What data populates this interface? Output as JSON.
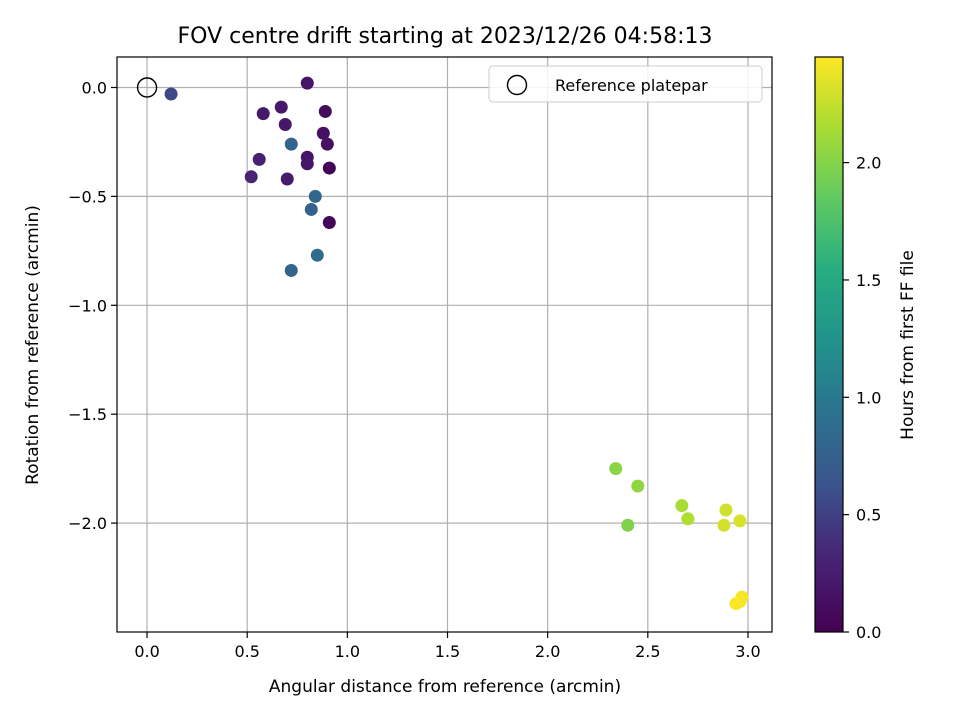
{
  "chart_data": {
    "type": "scatter",
    "title": "FOV centre drift starting at 2023/12/26 04:58:13",
    "xlabel": "Angular distance from reference (arcmin)",
    "ylabel": "Rotation from reference (arcmin)",
    "xlim": [
      -0.15,
      3.12
    ],
    "ylim": [
      -2.5,
      0.14
    ],
    "xticks": [
      0.0,
      0.5,
      1.0,
      1.5,
      2.0,
      2.5,
      3.0
    ],
    "xtick_labels": [
      "0.0",
      "0.5",
      "1.0",
      "1.5",
      "2.0",
      "2.5",
      "3.0"
    ],
    "yticks": [
      0.0,
      -0.5,
      -1.0,
      -1.5,
      -2.0
    ],
    "ytick_labels": [
      "0.0",
      "−0.5",
      "−1.0",
      "−1.5",
      "−2.0"
    ],
    "grid": true,
    "legend": {
      "position": "top-right",
      "entries": [
        {
          "label": "Reference platepar",
          "marker": "open-circle",
          "color": "#000000"
        }
      ]
    },
    "reference_point": {
      "x": 0.0,
      "y": 0.0
    },
    "colorbar": {
      "label": "Hours from first FF file",
      "colormap": "viridis",
      "range": [
        0.0,
        2.45
      ],
      "ticks": [
        0.0,
        0.5,
        1.0,
        1.5,
        2.0
      ],
      "tick_labels": [
        "0.0",
        "0.5",
        "1.0",
        "1.5",
        "2.0"
      ]
    },
    "points": [
      {
        "x": 0.8,
        "y": 0.02,
        "h": 0.18
      },
      {
        "x": 0.12,
        "y": -0.03,
        "h": 0.55
      },
      {
        "x": 0.58,
        "y": -0.12,
        "h": 0.22
      },
      {
        "x": 0.67,
        "y": -0.09,
        "h": 0.2
      },
      {
        "x": 0.69,
        "y": -0.17,
        "h": 0.21
      },
      {
        "x": 0.89,
        "y": -0.11,
        "h": 0.1
      },
      {
        "x": 0.88,
        "y": -0.21,
        "h": 0.15
      },
      {
        "x": 0.9,
        "y": -0.26,
        "h": 0.14
      },
      {
        "x": 0.72,
        "y": -0.26,
        "h": 0.8
      },
      {
        "x": 0.56,
        "y": -0.33,
        "h": 0.28
      },
      {
        "x": 0.8,
        "y": -0.32,
        "h": 0.18
      },
      {
        "x": 0.8,
        "y": -0.35,
        "h": 0.19
      },
      {
        "x": 0.91,
        "y": -0.37,
        "h": 0.02
      },
      {
        "x": 0.52,
        "y": -0.41,
        "h": 0.32
      },
      {
        "x": 0.7,
        "y": -0.42,
        "h": 0.23
      },
      {
        "x": 0.84,
        "y": -0.5,
        "h": 0.82
      },
      {
        "x": 0.82,
        "y": -0.56,
        "h": 0.78
      },
      {
        "x": 0.91,
        "y": -0.62,
        "h": 0.05
      },
      {
        "x": 0.85,
        "y": -0.77,
        "h": 0.85
      },
      {
        "x": 0.72,
        "y": -0.84,
        "h": 0.8
      },
      {
        "x": 2.34,
        "y": -1.75,
        "h": 2.02
      },
      {
        "x": 2.45,
        "y": -1.83,
        "h": 2.05
      },
      {
        "x": 2.4,
        "y": -2.01,
        "h": 1.98
      },
      {
        "x": 2.67,
        "y": -1.92,
        "h": 2.15
      },
      {
        "x": 2.7,
        "y": -1.98,
        "h": 2.18
      },
      {
        "x": 2.89,
        "y": -1.94,
        "h": 2.28
      },
      {
        "x": 2.88,
        "y": -2.01,
        "h": 2.3
      },
      {
        "x": 2.96,
        "y": -1.99,
        "h": 2.32
      },
      {
        "x": 2.97,
        "y": -2.34,
        "h": 2.42
      },
      {
        "x": 2.96,
        "y": -2.36,
        "h": 2.43
      },
      {
        "x": 2.94,
        "y": -2.37,
        "h": 2.44
      }
    ]
  }
}
